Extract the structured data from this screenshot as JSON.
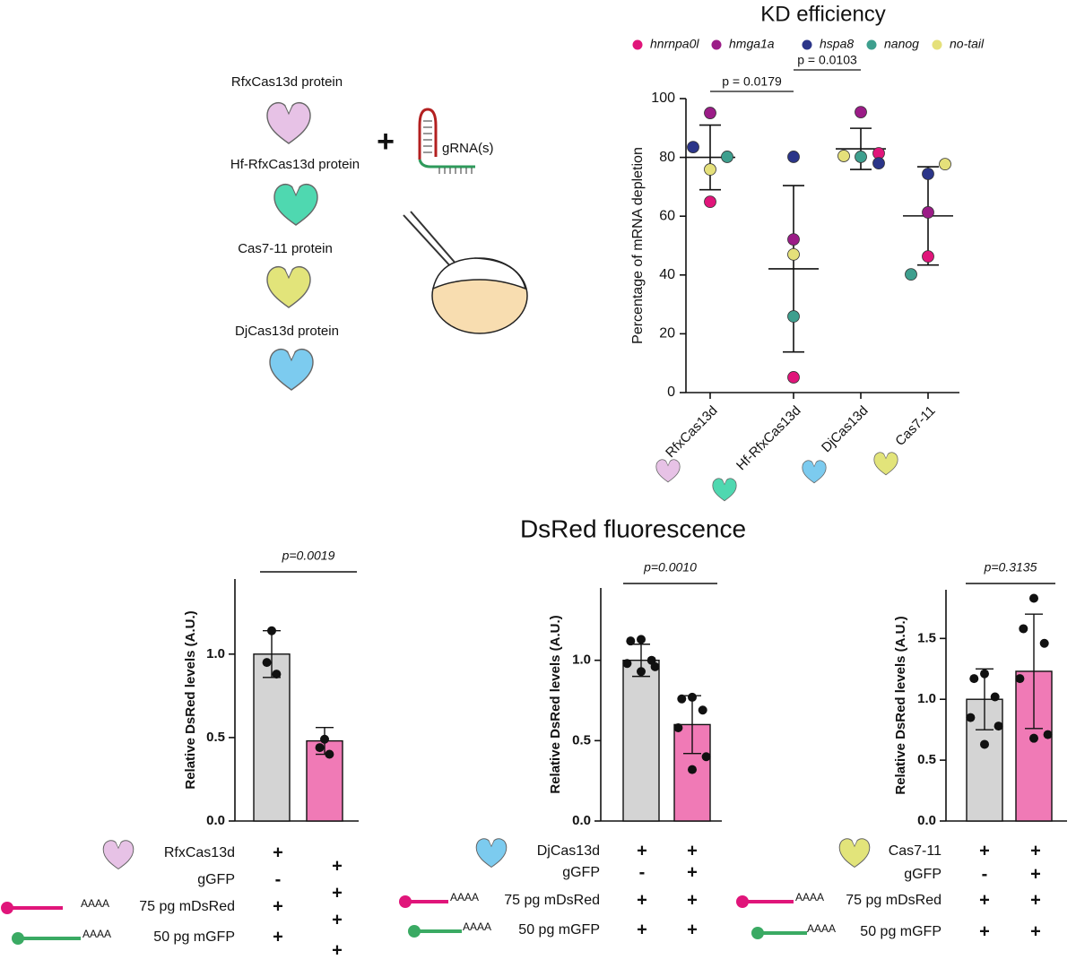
{
  "schematic": {
    "proteins": [
      "RfxCas13d protein",
      "Hf-RfxCas13d protein",
      "Cas7-11 protein",
      "DjCas13d protein"
    ],
    "plus": "+",
    "grna": "gRNA(s)"
  },
  "section_title": "DsRed fluorescence",
  "chart_data": [
    {
      "type": "dot",
      "title": "KD efficiency",
      "y_label": "Percentage of mRNA depletion",
      "categories": [
        "RfxCas13d",
        "Hf-RfxCas13d",
        "DjCas13d",
        "Cas7-11"
      ],
      "series": [
        {
          "name": "hnrnpa0l",
          "color": "#e0157a",
          "values": [
            64.9,
            5.2,
            81.4,
            46.3
          ]
        },
        {
          "name": "hmga1a",
          "color": "#9b1c87",
          "values": [
            95.1,
            52.1,
            95.4,
            61.3
          ]
        },
        {
          "name": "hspa8",
          "color": "#2b3589",
          "values": [
            83.5,
            80.2,
            78,
            74.4
          ]
        },
        {
          "name": "nanog",
          "color": "#3e9f8e",
          "values": [
            80.2,
            25.9,
            80.2,
            40.2
          ]
        },
        {
          "name": "no-tail",
          "color": "#e5e07a",
          "values": [
            75.9,
            47,
            80.5,
            77.7
          ]
        }
      ],
      "mean": [
        80,
        42.1,
        82.9,
        60.1
      ],
      "sd": [
        11,
        28.3,
        7,
        16.7
      ],
      "ylim": [
        0,
        100
      ],
      "yticks": [
        0,
        20,
        40,
        60,
        80,
        100
      ],
      "annotations": [
        "p = 0.0179",
        "p = 0.0103"
      ]
    },
    {
      "type": "bar",
      "y_label": "Relative DsRed levels (A.U.)",
      "values": [
        1,
        0.48
      ],
      "errors": [
        0.14,
        0.08
      ],
      "points": [
        [
          1.14,
          0.95,
          0.88
        ],
        [
          0.49,
          0.44,
          0.4
        ]
      ],
      "colors": [
        "#d4d4d4",
        "#f07ab6"
      ],
      "ylim": [
        0,
        1.45
      ],
      "yticks": [
        {
          "value": 0,
          "label": "0.0"
        },
        0.5,
        {
          "value": 1,
          "label": "1.0"
        }
      ],
      "annotations": [
        "p=0.0019"
      ],
      "conditions": [
        {
          "label": "RfxCas13d",
          "marks": [
            "+",
            "+"
          ]
        },
        {
          "label": "gGFP",
          "marks": [
            "-",
            "+"
          ]
        },
        {
          "label": "75 pg mDsRed",
          "tail": "AAAA",
          "marks": [
            "+",
            "+"
          ]
        },
        {
          "label": "50 pg mGFP",
          "tail": "AAAA",
          "marks": [
            "+",
            "+"
          ]
        }
      ]
    },
    {
      "type": "bar",
      "y_label": "Relative DsRed levels (A.U.)",
      "values": [
        1,
        0.6
      ],
      "errors": [
        0.1,
        0.18
      ],
      "points": [
        [
          1.13,
          1.12,
          1,
          0.98,
          0.96,
          0.93
        ],
        [
          0.77,
          0.76,
          0.69,
          0.58,
          0.4,
          0.32
        ]
      ],
      "colors": [
        "#d4d4d4",
        "#f07ab6"
      ],
      "ylim": [
        0,
        1.45
      ],
      "yticks": [
        {
          "value": 0,
          "label": "0.0"
        },
        0.5,
        {
          "value": 1,
          "label": "1.0"
        }
      ],
      "annotations": [
        "p=0.0010"
      ],
      "conditions": [
        {
          "label": "DjCas13d",
          "marks": [
            "+",
            "+"
          ]
        },
        {
          "label": "gGFP",
          "marks": [
            "-",
            "+"
          ]
        },
        {
          "label": "75 pg mDsRed",
          "tail": "AAAA",
          "marks": [
            "+",
            "+"
          ]
        },
        {
          "label": "50 pg mGFP",
          "tail": "AAAA",
          "marks": [
            "+",
            "+"
          ]
        }
      ]
    },
    {
      "type": "bar",
      "y_label": "Relative DsRed levels (A.U.)",
      "values": [
        1,
        1.23
      ],
      "errors": [
        0.25,
        0.47
      ],
      "points": [
        [
          1.21,
          1.17,
          1.02,
          0.85,
          0.78,
          0.63
        ],
        [
          1.83,
          1.58,
          1.46,
          1.17,
          0.71,
          0.68
        ]
      ],
      "colors": [
        "#d4d4d4",
        "#f07ab6"
      ],
      "ylim": [
        0,
        1.9
      ],
      "yticks": [
        {
          "value": 0,
          "label": "0.0"
        },
        0.5,
        {
          "value": 1,
          "label": "1.0"
        },
        1.5
      ],
      "annotations": [
        "p=0.3135"
      ],
      "conditions": [
        {
          "label": "Cas7-11",
          "marks": [
            "+",
            "+"
          ]
        },
        {
          "label": "gGFP",
          "marks": [
            "-",
            "+"
          ]
        },
        {
          "label": "75 pg mDsRed",
          "tail": "AAAA",
          "marks": [
            "+",
            "+"
          ]
        },
        {
          "label": "50 pg mGFP",
          "tail": "AAAA",
          "marks": [
            "+",
            "+"
          ]
        }
      ]
    }
  ]
}
